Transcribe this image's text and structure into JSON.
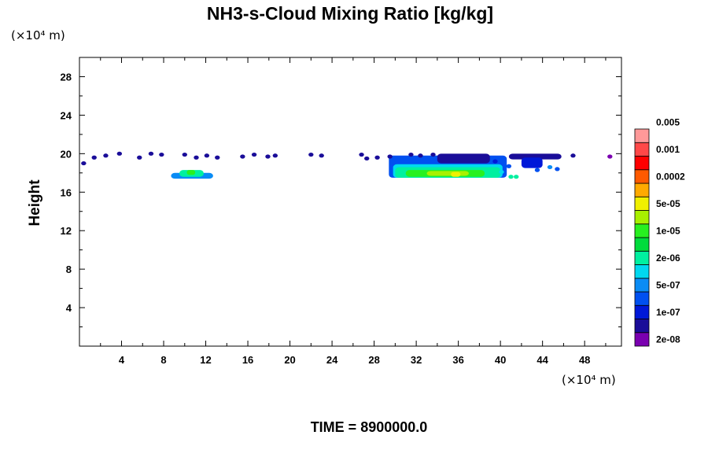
{
  "chart_data": {
    "type": "contour",
    "title": "NH3-s-Cloud Mixing Ratio [kg/kg]",
    "ylabel": "Height",
    "x_unit_label": "(×10⁴ m)",
    "y_unit_label": "(×10⁴ m)",
    "xlim": [
      0,
      51.5
    ],
    "ylim": [
      0,
      30
    ],
    "x_ticks": [
      4,
      8,
      12,
      16,
      20,
      24,
      28,
      32,
      36,
      40,
      44,
      48
    ],
    "y_ticks": [
      4,
      8,
      12,
      16,
      20,
      24,
      28
    ],
    "x_tick_labels": [
      "4",
      "8",
      "12",
      "16",
      "20",
      "24",
      "28",
      "32",
      "36",
      "40",
      "44",
      "48"
    ],
    "y_tick_labels": [
      "4",
      "8",
      "12",
      "16",
      "20",
      "24",
      "28"
    ],
    "colorbar": {
      "colors": [
        "#7a00b0",
        "#1a0d99",
        "#0018d8",
        "#0050f0",
        "#0a8cf5",
        "#00d8f0",
        "#00f0a0",
        "#00dc3c",
        "#28f020",
        "#a8f000",
        "#f0f000",
        "#ffaa00",
        "#ff5a00",
        "#ff0000",
        "#ff4848",
        "#ff9999"
      ],
      "labels": [
        "2e-08",
        "1e-07",
        "5e-07",
        "2e-06",
        "1e-05",
        "5e-05",
        "0.0002",
        "0.001",
        "0.005"
      ]
    },
    "regions": [
      {
        "level": 4,
        "x": [
          8.7,
          12.7
        ],
        "y": [
          17.4,
          18.0
        ]
      },
      {
        "level": 6,
        "x": [
          9.5,
          11.8
        ],
        "y": [
          17.6,
          18.3
        ]
      },
      {
        "level": 8,
        "x": [
          10.2,
          11.0
        ],
        "y": [
          17.8,
          18.3
        ]
      },
      {
        "level": 3,
        "x": [
          29.4,
          40.6
        ],
        "y": [
          17.5,
          19.8
        ]
      },
      {
        "level": 5,
        "x": [
          29.8,
          40.2
        ],
        "y": [
          17.5,
          18.9
        ]
      },
      {
        "level": 6,
        "x": [
          30.0,
          40.0
        ],
        "y": [
          17.5,
          18.6
        ]
      },
      {
        "level": 8,
        "x": [
          31.0,
          38.5
        ],
        "y": [
          17.6,
          18.3
        ]
      },
      {
        "level": 9,
        "x": [
          33.0,
          37.0
        ],
        "y": [
          17.7,
          18.2
        ]
      },
      {
        "level": 10,
        "x": [
          35.3,
          36.2
        ],
        "y": [
          17.6,
          18.1
        ]
      },
      {
        "level": 1,
        "x": [
          34.0,
          39.0
        ],
        "y": [
          19.0,
          20.0
        ]
      },
      {
        "level": 1,
        "x": [
          40.8,
          45.8
        ],
        "y": [
          19.4,
          20.0
        ]
      },
      {
        "level": 2,
        "x": [
          42.0,
          44.0
        ],
        "y": [
          18.5,
          19.6
        ]
      }
    ],
    "scatter_cells": [
      [
        0.4,
        19.0,
        1
      ],
      [
        1.4,
        19.6,
        1
      ],
      [
        2.5,
        19.8,
        1
      ],
      [
        3.8,
        20.0,
        1
      ],
      [
        5.7,
        19.6,
        1
      ],
      [
        6.8,
        20.0,
        1
      ],
      [
        7.8,
        19.9,
        1
      ],
      [
        10.0,
        19.9,
        1
      ],
      [
        11.1,
        19.6,
        1
      ],
      [
        12.1,
        19.8,
        1
      ],
      [
        13.1,
        19.6,
        1
      ],
      [
        15.5,
        19.7,
        1
      ],
      [
        16.6,
        19.9,
        1
      ],
      [
        17.9,
        19.7,
        1
      ],
      [
        18.6,
        19.8,
        1
      ],
      [
        22.0,
        19.9,
        1
      ],
      [
        23.0,
        19.8,
        1
      ],
      [
        26.8,
        19.9,
        1
      ],
      [
        27.3,
        19.5,
        1
      ],
      [
        28.3,
        19.6,
        1
      ],
      [
        29.5,
        19.7,
        1
      ],
      [
        31.5,
        19.9,
        1
      ],
      [
        32.4,
        19.8,
        1
      ],
      [
        33.6,
        19.9,
        1
      ],
      [
        46.9,
        19.8,
        1
      ],
      [
        50.4,
        19.7,
        0
      ],
      [
        43.5,
        18.3,
        3
      ],
      [
        44.7,
        18.6,
        4
      ],
      [
        45.4,
        18.4,
        3
      ],
      [
        41.0,
        17.6,
        6
      ],
      [
        41.5,
        17.6,
        6
      ],
      [
        40.1,
        18.1,
        5
      ],
      [
        40.8,
        18.7,
        3
      ],
      [
        39.5,
        19.2,
        2
      ]
    ],
    "time_label": "TIME = 8900000.0"
  }
}
